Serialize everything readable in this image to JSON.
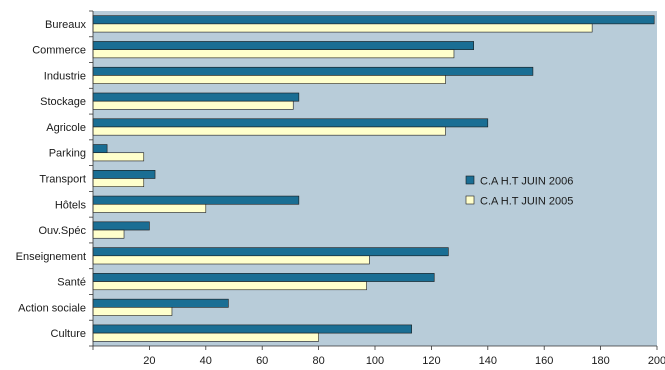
{
  "chart_data": {
    "type": "bar",
    "orientation": "horizontal",
    "categories": [
      "Bureaux",
      "Commerce",
      "Industrie",
      "Stockage",
      "Agricole",
      "Parking",
      "Transport",
      "Hôtels",
      "Ouv.Spéc",
      "Enseignement",
      "Santé",
      "Action sociale",
      "Culture"
    ],
    "series": [
      {
        "name": "C.A H.T JUIN 2006",
        "color": "#1a6e94",
        "values": [
          199,
          135,
          156,
          73,
          140,
          5,
          22,
          73,
          20,
          126,
          121,
          48,
          113
        ]
      },
      {
        "name": "C.A H.T JUIN 2005",
        "color": "#ffffcc",
        "values": [
          177,
          128,
          125,
          71,
          125,
          18,
          18,
          40,
          11,
          98,
          97,
          28,
          80
        ]
      }
    ],
    "xlim": [
      0,
      200
    ],
    "xticks": [
      "20",
      "40",
      "60",
      "80",
      "100",
      "120",
      "140",
      "160",
      "180",
      "200"
    ],
    "plot_background": "#b8ccd9",
    "grid": false,
    "legend_position": "right"
  }
}
